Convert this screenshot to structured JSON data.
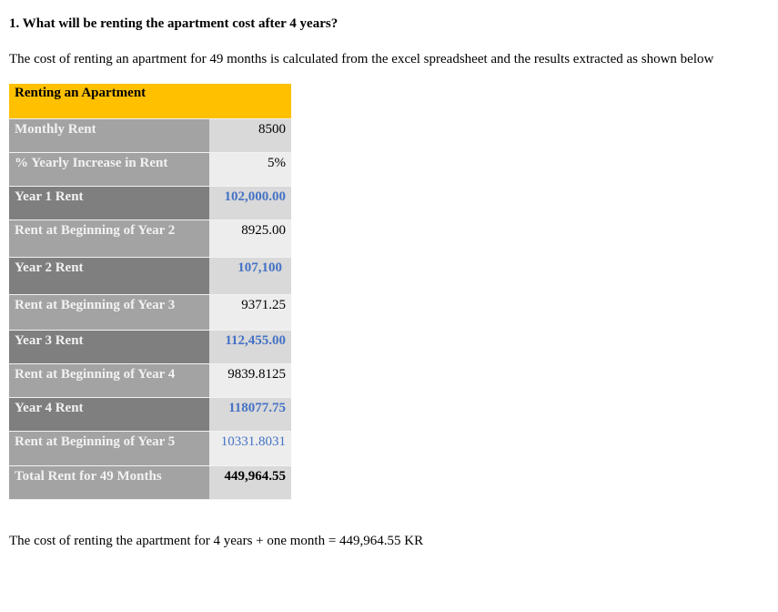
{
  "question": "1.  What will be renting the apartment cost after 4 years?",
  "intro": "The cost of renting an apartment for 49 months is calculated from the excel spreadsheet and the results extracted as shown below",
  "table": {
    "title": "Renting an Apartment",
    "rows": [
      {
        "label": "Monthly Rent",
        "value": "8500"
      },
      {
        "label": "% Yearly Increase in Rent",
        "value": "5%"
      },
      {
        "label": "Year 1 Rent",
        "value": "102,000.00"
      },
      {
        "label": "Rent at Beginning of Year 2",
        "value": "8925.00"
      },
      {
        "label": "Year 2 Rent",
        "value": "107,100"
      },
      {
        "label": "Rent at Beginning of Year 3",
        "value": "9371.25"
      },
      {
        "label": "Year 3 Rent",
        "value": "112,455.00"
      },
      {
        "label": "Rent at Beginning of Year 4",
        "value": "9839.8125"
      },
      {
        "label": "Year 4 Rent",
        "value": "118077.75"
      },
      {
        "label": "Rent at Beginning of Year 5",
        "value": "10331.8031"
      },
      {
        "label": "Total Rent for 49 Months",
        "value": "449,964.55"
      }
    ]
  },
  "conclusion": "The cost of renting the apartment for 4 years + one month = 449,964.55 KR",
  "colors": {
    "header": "#ffc000",
    "highlight_value": "#4472c4"
  }
}
